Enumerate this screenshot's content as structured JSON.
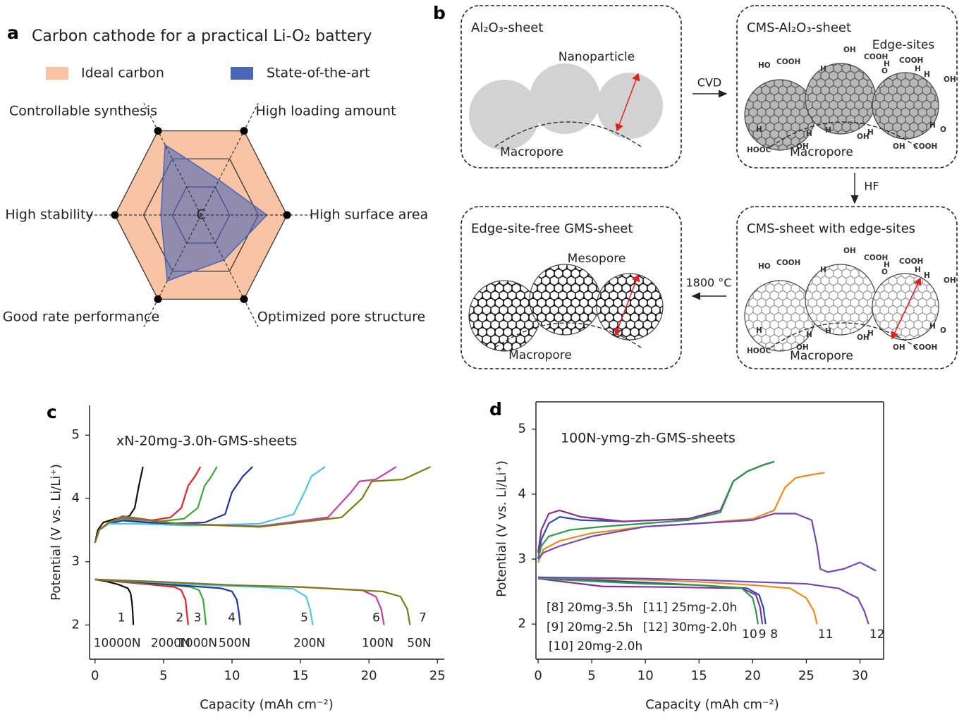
{
  "panel_labels": [
    "a",
    "b",
    "c",
    "d"
  ],
  "chart_data": [
    {
      "type": "radar",
      "title": "Carbon cathode for a practical Li-O₂ battery",
      "axes": [
        "Controllable synthesis",
        "High loading amount",
        "High surface area",
        "Optimized pore structure",
        "Good rate performance",
        "High stability"
      ],
      "center_label": "C",
      "rlim": [
        0,
        3
      ],
      "rticks": [
        1,
        2,
        3
      ],
      "series": [
        {
          "name": "Ideal carbon",
          "color": "#f9c4a3",
          "values": [
            3,
            3,
            3,
            3,
            3,
            3
          ]
        },
        {
          "name": "State-of-the-art",
          "color": "#4a66b8",
          "values": [
            2.5,
            1.25,
            2.3,
            1.6,
            2.35,
            1.4
          ]
        }
      ]
    },
    {
      "type": "line",
      "title": "xN-20mg-3.0h-GMS-sheets",
      "x_label": "Capacity (mAh cm⁻²)",
      "y_label": "Potential (V vs. Li/Li⁺)",
      "xlim": [
        -0.4,
        25.5
      ],
      "ylim": [
        1.46,
        5.47
      ],
      "xticks": [
        0,
        5,
        10,
        15,
        20,
        25
      ],
      "yticks": [
        2,
        3,
        4,
        5
      ],
      "frame": false,
      "series": [
        {
          "name": "1",
          "rate": "10000N",
          "color": "#111111",
          "discharge": {
            "x": [
              0,
              0.8,
              1.7,
              2.4,
              2.6,
              2.7,
              2.75,
              2.8
            ],
            "values": [
              2.72,
              2.69,
              2.64,
              2.58,
              2.5,
              2.35,
              2.2,
              2.0
            ]
          },
          "charge": {
            "x": [
              0,
              0.2,
              0.6,
              1.5,
              2.5,
              2.9,
              3.2,
              3.5
            ],
            "values": [
              3.3,
              3.5,
              3.62,
              3.68,
              3.72,
              3.85,
              4.2,
              4.5
            ]
          }
        },
        {
          "name": "2",
          "rate": "2000N",
          "color": "#e8202a",
          "discharge": {
            "x": [
              0,
              2,
              4,
              5.8,
              6.3,
              6.6,
              6.7,
              6.8
            ],
            "values": [
              2.72,
              2.68,
              2.64,
              2.6,
              2.55,
              2.4,
              2.2,
              2.0
            ]
          },
          "charge": {
            "x": [
              0,
              0.3,
              1,
              2,
              4,
              5.5,
              6.3,
              6.8,
              7.3,
              7.7
            ],
            "values": [
              3.3,
              3.5,
              3.62,
              3.7,
              3.65,
              3.7,
              3.85,
              4.2,
              4.35,
              4.5
            ]
          }
        },
        {
          "name": "3",
          "rate": "1000N",
          "color": "#3aaa35",
          "discharge": {
            "x": [
              0,
              2.5,
              5,
              7,
              7.6,
              7.9,
              8,
              8.1
            ],
            "values": [
              2.72,
              2.68,
              2.64,
              2.6,
              2.55,
              2.4,
              2.2,
              2.0
            ]
          },
          "charge": {
            "x": [
              0,
              0.3,
              1,
              2,
              4,
              6.5,
              7.5,
              8,
              8.5,
              8.9
            ],
            "values": [
              3.3,
              3.5,
              3.62,
              3.68,
              3.62,
              3.68,
              3.85,
              4.2,
              4.35,
              4.5
            ]
          }
        },
        {
          "name": "4",
          "rate": "500N",
          "color": "#23349a",
          "discharge": {
            "x": [
              0,
              3,
              6,
              9.2,
              10,
              10.35,
              10.5,
              10.6
            ],
            "values": [
              2.72,
              2.68,
              2.63,
              2.58,
              2.53,
              2.4,
              2.2,
              2.0
            ]
          },
          "charge": {
            "x": [
              0,
              0.3,
              1,
              2,
              5,
              8,
              9.5,
              10,
              10.8,
              11.5
            ],
            "values": [
              3.3,
              3.5,
              3.6,
              3.65,
              3.6,
              3.62,
              3.75,
              4.1,
              4.35,
              4.5
            ]
          }
        },
        {
          "name": "5",
          "rate": "200N",
          "color": "#4ec6e2",
          "discharge": {
            "x": [
              0,
              4,
              8,
              12,
              14.5,
              15.4,
              15.7,
              15.9
            ],
            "values": [
              2.72,
              2.68,
              2.63,
              2.6,
              2.57,
              2.45,
              2.25,
              2.0
            ]
          },
          "charge": {
            "x": [
              0,
              0.3,
              1,
              3,
              7,
              12,
              14.5,
              15.3,
              15.8,
              16.8
            ],
            "values": [
              3.3,
              3.5,
              3.6,
              3.6,
              3.57,
              3.6,
              3.75,
              4.1,
              4.35,
              4.5
            ]
          }
        },
        {
          "name": "6",
          "rate": "100N",
          "color": "#c23fae",
          "discharge": {
            "x": [
              0,
              5,
              10,
              15,
              19.5,
              20.5,
              20.9,
              21.1
            ],
            "values": [
              2.72,
              2.68,
              2.63,
              2.6,
              2.55,
              2.45,
              2.25,
              2.0
            ]
          },
          "charge": {
            "x": [
              0,
              0.3,
              1,
              2,
              6,
              12,
              17,
              18.7,
              19.3,
              20.5,
              22
            ],
            "values": [
              3.3,
              3.5,
              3.62,
              3.7,
              3.6,
              3.56,
              3.7,
              4.1,
              4.27,
              4.3,
              4.5
            ]
          }
        },
        {
          "name": "7",
          "rate": "50N",
          "color": "#7d7a12",
          "discharge": {
            "x": [
              0,
              5,
              10,
              15,
              21,
              22.3,
              22.8,
              23.0
            ],
            "values": [
              2.72,
              2.68,
              2.63,
              2.6,
              2.53,
              2.45,
              2.25,
              2.0
            ]
          },
          "charge": {
            "x": [
              0,
              0.3,
              1,
              2,
              6,
              12,
              18,
              19.5,
              20.2,
              22.5,
              24.5
            ],
            "values": [
              3.3,
              3.5,
              3.62,
              3.72,
              3.6,
              3.55,
              3.7,
              4.0,
              4.27,
              4.3,
              4.5
            ]
          }
        }
      ]
    },
    {
      "type": "line",
      "title": "100N-ymg-zh-GMS-sheets",
      "x_label": "Capacity (mAh cm⁻²)",
      "y_label": "Potential (V vs. Li/Li⁺)",
      "xlim": [
        -0.2,
        32.2
      ],
      "ylim": [
        1.46,
        5.42
      ],
      "xticks": [
        0,
        5,
        10,
        15,
        20,
        25,
        30
      ],
      "yticks": [
        2,
        3,
        4,
        5
      ],
      "frame": true,
      "series": [
        {
          "name": "[8] 20mg-3.5h",
          "label": "8",
          "color": "#2b4fa8",
          "discharge": {
            "x": [
              0,
              5,
              10,
              15,
              19.5,
              20.6,
              21,
              21.2
            ],
            "values": [
              2.72,
              2.68,
              2.64,
              2.6,
              2.55,
              2.45,
              2.25,
              2.0
            ]
          },
          "charge": {
            "x": [
              0,
              0.3,
              1,
              2,
              4,
              8,
              14,
              17,
              18.2,
              19.5,
              21,
              22
            ],
            "values": [
              3.0,
              3.3,
              3.55,
              3.65,
              3.6,
              3.58,
              3.62,
              3.75,
              4.2,
              4.35,
              4.45,
              4.5
            ]
          }
        },
        {
          "name": "[9] 20mg-2.5h",
          "label": "9",
          "color": "#8a2f9a",
          "discharge": {
            "x": [
              0,
              3,
              6,
              12,
              19,
              20.3,
              20.7,
              20.9
            ],
            "values": [
              2.7,
              2.64,
              2.58,
              2.57,
              2.55,
              2.45,
              2.25,
              2.0
            ]
          },
          "charge": {
            "x": [
              0,
              0.3,
              1,
              2,
              4,
              8,
              14,
              17,
              18.2,
              19.5,
              21,
              22
            ],
            "values": [
              3.1,
              3.45,
              3.7,
              3.75,
              3.65,
              3.58,
              3.62,
              3.75,
              4.2,
              4.35,
              4.45,
              4.5
            ]
          }
        },
        {
          "name": "[10] 20mg-2.0h",
          "label": "10",
          "color": "#2a9a4a",
          "discharge": {
            "x": [
              0,
              5,
              10,
              15,
              19,
              20,
              20.3,
              20.5
            ],
            "values": [
              2.7,
              2.66,
              2.62,
              2.6,
              2.55,
              2.4,
              2.2,
              2.0
            ]
          },
          "charge": {
            "x": [
              0,
              0.3,
              1,
              3,
              6,
              10,
              14,
              17,
              18.2,
              19.5,
              21,
              22
            ],
            "values": [
              3.0,
              3.2,
              3.35,
              3.45,
              3.5,
              3.55,
              3.6,
              3.72,
              4.2,
              4.35,
              4.45,
              4.5
            ]
          }
        },
        {
          "name": "[11] 25mg-2.0h",
          "label": "11",
          "color": "#f08a20",
          "discharge": {
            "x": [
              0,
              5,
              10,
              15,
              20,
              23.5,
              25,
              25.7,
              26
            ],
            "values": [
              2.72,
              2.7,
              2.68,
              2.65,
              2.6,
              2.55,
              2.4,
              2.2,
              2.0
            ]
          },
          "charge": {
            "x": [
              0,
              0.5,
              2,
              5,
              10,
              15,
              20,
              22,
              23,
              24,
              25.5,
              26.7
            ],
            "values": [
              2.95,
              3.15,
              3.28,
              3.4,
              3.5,
              3.55,
              3.62,
              3.75,
              4.1,
              4.25,
              4.3,
              4.33
            ]
          }
        },
        {
          "name": "[12] 30mg-2.0h",
          "label": "12",
          "color": "#7048b8",
          "discharge": {
            "x": [
              0,
              5,
              10,
              15,
              20,
              25,
              28,
              29.8,
              30.4,
              30.8
            ],
            "values": [
              2.72,
              2.71,
              2.7,
              2.68,
              2.65,
              2.62,
              2.55,
              2.4,
              2.2,
              2.0
            ]
          },
          "charge": {
            "x": [
              0,
              0.5,
              2,
              5,
              10,
              15,
              20,
              22,
              24,
              25.5,
              26,
              26.3,
              27,
              28.5,
              30,
              31.5
            ],
            "values": [
              3.0,
              3.1,
              3.2,
              3.35,
              3.5,
              3.55,
              3.6,
              3.7,
              3.7,
              3.6,
              3.2,
              2.85,
              2.8,
              2.85,
              2.95,
              2.82
            ]
          }
        }
      ]
    }
  ],
  "diagram": {
    "boxes": [
      {
        "title": "Al₂O₃-sheet",
        "annotations": [
          "Nanoparticle",
          "Macropore"
        ]
      },
      {
        "title": "CMS-Al₂O₃-sheet",
        "annotations": [
          "Edge-sites",
          "Macropore"
        ],
        "groups": [
          "HO",
          "COOH",
          "H",
          "OH",
          "COOH",
          "H",
          "COOH",
          "O",
          "H",
          "H",
          "OH",
          "H",
          "HOOC",
          "OH",
          "H",
          "H",
          "OH",
          "H",
          "OH",
          "COOH",
          "H",
          "O"
        ]
      },
      {
        "title": "CMS-sheet with edge-sites",
        "annotations": [
          "Macropore"
        ],
        "groups": [
          "HO",
          "COOH",
          "H",
          "OH",
          "COOH",
          "H",
          "COOH",
          "O",
          "H",
          "H",
          "OH",
          "H",
          "HOOC",
          "OH",
          "H",
          "H",
          "OH",
          "H",
          "OH",
          "COOH",
          "H",
          "O"
        ]
      },
      {
        "title": "Edge-site-free GMS-sheet",
        "annotations": [
          "Mesopore",
          "Macropore"
        ]
      }
    ],
    "arrows": [
      "CVD",
      "HF",
      "1800 °C"
    ]
  }
}
